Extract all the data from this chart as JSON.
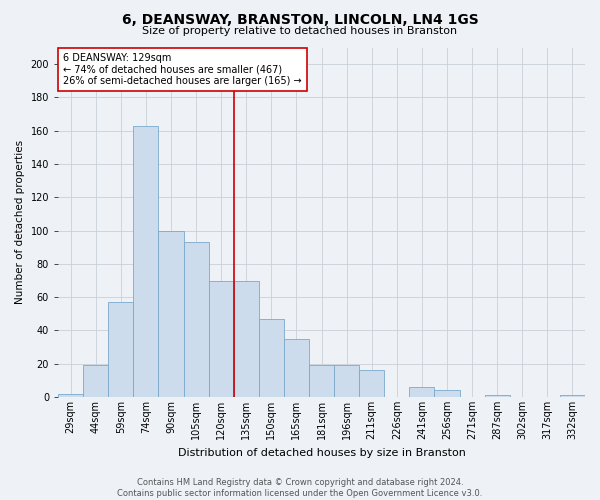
{
  "title": "6, DEANSWAY, BRANSTON, LINCOLN, LN4 1GS",
  "subtitle": "Size of property relative to detached houses in Branston",
  "xlabel": "Distribution of detached houses by size in Branston",
  "ylabel": "Number of detached properties",
  "categories": [
    "29sqm",
    "44sqm",
    "59sqm",
    "74sqm",
    "90sqm",
    "105sqm",
    "120sqm",
    "135sqm",
    "150sqm",
    "165sqm",
    "181sqm",
    "196sqm",
    "211sqm",
    "226sqm",
    "241sqm",
    "256sqm",
    "271sqm",
    "287sqm",
    "302sqm",
    "317sqm",
    "332sqm"
  ],
  "values": [
    2,
    19,
    57,
    163,
    100,
    93,
    70,
    70,
    47,
    35,
    19,
    19,
    16,
    0,
    6,
    4,
    0,
    1,
    0,
    0,
    1
  ],
  "bar_color": "#ccdcec",
  "bar_edge_color": "#7aa8cc",
  "vline_x": 7.0,
  "vline_color": "#cc0000",
  "annotation_title": "6 DEANSWAY: 129sqm",
  "annotation_line2": "← 74% of detached houses are smaller (467)",
  "annotation_line3": "26% of semi-detached houses are larger (165) →",
  "annotation_box_facecolor": "#ffffff",
  "annotation_box_edgecolor": "#cc0000",
  "ylim": [
    0,
    210
  ],
  "yticks": [
    0,
    20,
    40,
    60,
    80,
    100,
    120,
    140,
    160,
    180,
    200
  ],
  "footer_line1": "Contains HM Land Registry data © Crown copyright and database right 2024.",
  "footer_line2": "Contains public sector information licensed under the Open Government Licence v3.0.",
  "bg_color": "#eef2f7",
  "plot_bg_color": "#eef2f7",
  "grid_color": "#c8d0d8",
  "title_fontsize": 10,
  "subtitle_fontsize": 8,
  "ylabel_fontsize": 7.5,
  "xlabel_fontsize": 8,
  "tick_fontsize": 7,
  "annotation_fontsize": 7,
  "footer_fontsize": 6
}
